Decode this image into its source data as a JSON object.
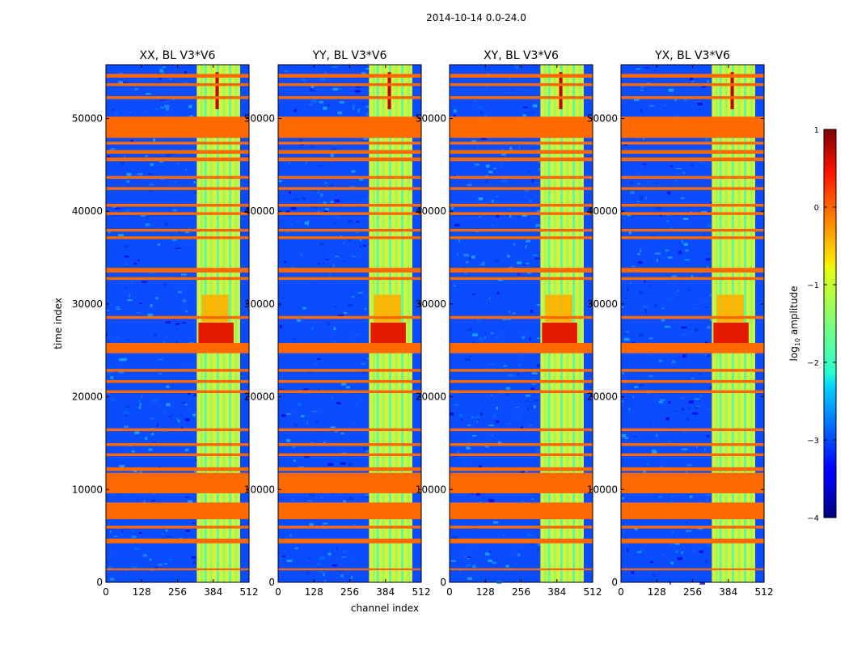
{
  "suptitle": "2014-10-14 0.0-24.0",
  "chart_data": {
    "type": "heatmap",
    "xlabel": "channel index",
    "ylabel": "time index",
    "xlim": [
      0,
      512
    ],
    "ylim": [
      0,
      55800
    ],
    "xticks": [
      "0",
      "128",
      "256",
      "384",
      "512"
    ],
    "xtick_values": [
      0,
      128,
      256,
      384,
      512
    ],
    "yticks": [
      "0",
      "10000",
      "20000",
      "30000",
      "40000",
      "50000"
    ],
    "ytick_values": [
      0,
      10000,
      20000,
      30000,
      40000,
      50000
    ],
    "panels": [
      {
        "title": "XX, BL V3*V6"
      },
      {
        "title": "YY, BL V3*V6"
      },
      {
        "title": "XY, BL V3*V6"
      },
      {
        "title": "YX, BL V3*V6"
      }
    ],
    "flagged_time_bands": [
      [
        1300,
        1500
      ],
      [
        4200,
        4700
      ],
      [
        5800,
        6100
      ],
      [
        6800,
        8600
      ],
      [
        9600,
        11800
      ],
      [
        12000,
        12400
      ],
      [
        13600,
        13900
      ],
      [
        14700,
        15000
      ],
      [
        16300,
        16600
      ],
      [
        20400,
        20700
      ],
      [
        21500,
        21800
      ],
      [
        22700,
        23000
      ],
      [
        24700,
        25800
      ],
      [
        28400,
        28700
      ],
      [
        32600,
        32900
      ],
      [
        33400,
        33900
      ],
      [
        37000,
        37300
      ],
      [
        37800,
        38100
      ],
      [
        39600,
        39900
      ],
      [
        40500,
        40800
      ],
      [
        42300,
        42600
      ],
      [
        43500,
        43800
      ],
      [
        45400,
        45800
      ],
      [
        46200,
        46600
      ],
      [
        47200,
        47500
      ],
      [
        47900,
        50200
      ],
      [
        52100,
        52400
      ],
      [
        53500,
        53800
      ],
      [
        54400,
        54800
      ]
    ],
    "flag_color": "#ff6a00",
    "bright_channel_range": [
      325,
      480
    ],
    "colorbar": {
      "label": "log10 amplitude",
      "label_main": "log",
      "label_sub": "10",
      "label_rest": " amplitude",
      "min": -4,
      "max": 1,
      "ticks": [
        "−4",
        "−3",
        "−2",
        "−1",
        "0",
        "1"
      ],
      "tick_values": [
        -4,
        -3,
        -2,
        -1,
        0,
        1
      ]
    }
  }
}
